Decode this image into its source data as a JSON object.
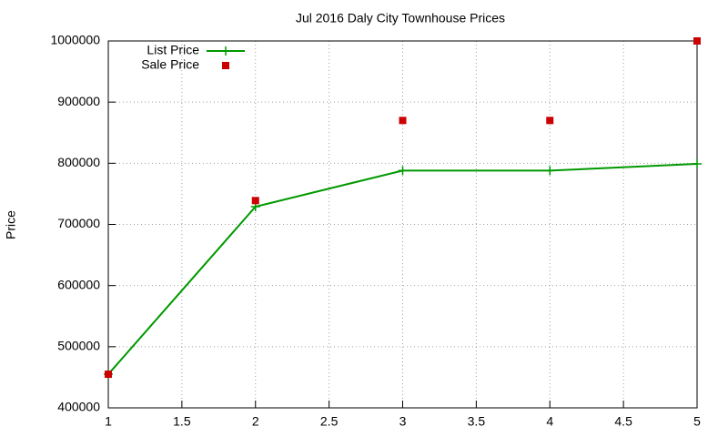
{
  "chart_data": {
    "type": "line",
    "title": "Jul 2016 Daly City Townhouse Prices",
    "y_label": "Price",
    "x": [
      1,
      2,
      3,
      4,
      5
    ],
    "series": [
      {
        "name": "List Price",
        "color": "#009900",
        "line": true,
        "marker": "plus",
        "values": [
          455000,
          729000,
          788000,
          788000,
          799000
        ]
      },
      {
        "name": "Sale Price",
        "color": "#cc0000",
        "line": false,
        "marker": "square",
        "values": [
          455000,
          739000,
          870000,
          870000,
          1000000
        ]
      }
    ],
    "xlim": [
      1,
      5
    ],
    "xticks": [
      1,
      1.5,
      2,
      2.5,
      3,
      3.5,
      4,
      4.5,
      5
    ],
    "ylim": [
      400000,
      1000000
    ],
    "yticks": [
      400000,
      500000,
      600000,
      700000,
      800000,
      900000,
      1000000
    ],
    "grid": true,
    "legend": "top left"
  }
}
